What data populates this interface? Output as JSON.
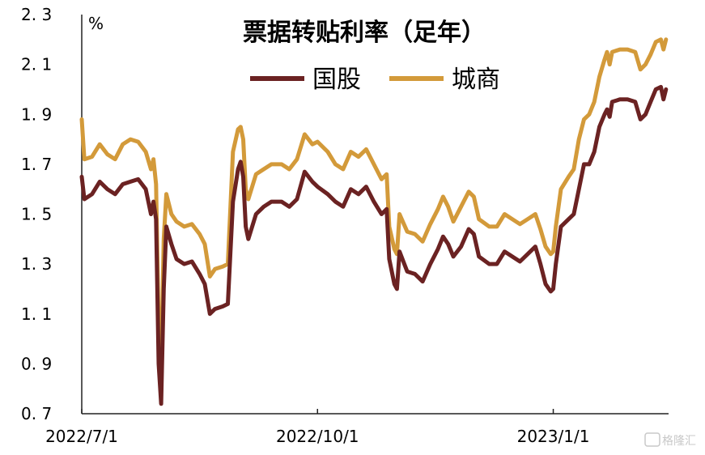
{
  "chart_data": {
    "type": "line",
    "title": "票据转贴利率（足年）",
    "unit": "%",
    "ylim": [
      0.7,
      2.3
    ],
    "yticks": [
      "2. 3",
      "2. 1",
      "1. 9",
      "1. 7",
      "1. 5",
      "1. 3",
      "1. 1",
      "0. 9",
      "0. 7"
    ],
    "ytick_values": [
      2.3,
      2.1,
      1.9,
      1.7,
      1.5,
      1.3,
      1.1,
      0.9,
      0.7
    ],
    "xlim": [
      "2022-07-01",
      "2023-02-15"
    ],
    "xticks": [
      {
        "label": "2022/7/1",
        "date": "2022-07-01"
      },
      {
        "label": "2022/10/1",
        "date": "2022-10-01"
      },
      {
        "label": "2023/1/1",
        "date": "2023-01-01"
      }
    ],
    "grid": false,
    "legend_position": "top-center",
    "series": [
      {
        "name": "国股",
        "color": "#6b2222",
        "points": [
          [
            "2022-07-01",
            1.65
          ],
          [
            "2022-07-02",
            1.56
          ],
          [
            "2022-07-05",
            1.58
          ],
          [
            "2022-07-08",
            1.63
          ],
          [
            "2022-07-11",
            1.6
          ],
          [
            "2022-07-14",
            1.58
          ],
          [
            "2022-07-17",
            1.62
          ],
          [
            "2022-07-20",
            1.63
          ],
          [
            "2022-07-23",
            1.64
          ],
          [
            "2022-07-26",
            1.6
          ],
          [
            "2022-07-28",
            1.5
          ],
          [
            "2022-07-29",
            1.55
          ],
          [
            "2022-07-30",
            1.48
          ],
          [
            "2022-07-31",
            0.9
          ],
          [
            "2022-08-01",
            0.74
          ],
          [
            "2022-08-02",
            1.2
          ],
          [
            "2022-08-03",
            1.45
          ],
          [
            "2022-08-05",
            1.38
          ],
          [
            "2022-08-07",
            1.32
          ],
          [
            "2022-08-10",
            1.3
          ],
          [
            "2022-08-13",
            1.31
          ],
          [
            "2022-08-16",
            1.26
          ],
          [
            "2022-08-18",
            1.22
          ],
          [
            "2022-08-20",
            1.1
          ],
          [
            "2022-08-22",
            1.12
          ],
          [
            "2022-08-25",
            1.13
          ],
          [
            "2022-08-27",
            1.14
          ],
          [
            "2022-08-29",
            1.55
          ],
          [
            "2022-08-31",
            1.68
          ],
          [
            "2022-09-01",
            1.71
          ],
          [
            "2022-09-02",
            1.65
          ],
          [
            "2022-09-03",
            1.45
          ],
          [
            "2022-09-04",
            1.4
          ],
          [
            "2022-09-07",
            1.5
          ],
          [
            "2022-09-10",
            1.53
          ],
          [
            "2022-09-13",
            1.55
          ],
          [
            "2022-09-17",
            1.55
          ],
          [
            "2022-09-20",
            1.53
          ],
          [
            "2022-09-23",
            1.56
          ],
          [
            "2022-09-26",
            1.67
          ],
          [
            "2022-09-29",
            1.63
          ],
          [
            "2022-10-01",
            1.61
          ],
          [
            "2022-10-05",
            1.58
          ],
          [
            "2022-10-08",
            1.55
          ],
          [
            "2022-10-11",
            1.53
          ],
          [
            "2022-10-14",
            1.6
          ],
          [
            "2022-10-17",
            1.58
          ],
          [
            "2022-10-20",
            1.61
          ],
          [
            "2022-10-23",
            1.55
          ],
          [
            "2022-10-26",
            1.5
          ],
          [
            "2022-10-28",
            1.52
          ],
          [
            "2022-10-29",
            1.32
          ],
          [
            "2022-10-31",
            1.22
          ],
          [
            "2022-11-01",
            1.2
          ],
          [
            "2022-11-02",
            1.35
          ],
          [
            "2022-11-05",
            1.27
          ],
          [
            "2022-11-08",
            1.26
          ],
          [
            "2022-11-11",
            1.23
          ],
          [
            "2022-11-14",
            1.3
          ],
          [
            "2022-11-17",
            1.36
          ],
          [
            "2022-11-19",
            1.41
          ],
          [
            "2022-11-21",
            1.38
          ],
          [
            "2022-11-23",
            1.33
          ],
          [
            "2022-11-26",
            1.37
          ],
          [
            "2022-11-29",
            1.44
          ],
          [
            "2022-12-01",
            1.42
          ],
          [
            "2022-12-03",
            1.33
          ],
          [
            "2022-12-07",
            1.3
          ],
          [
            "2022-12-10",
            1.3
          ],
          [
            "2022-12-13",
            1.35
          ],
          [
            "2022-12-16",
            1.33
          ],
          [
            "2022-12-19",
            1.31
          ],
          [
            "2022-12-22",
            1.34
          ],
          [
            "2022-12-25",
            1.37
          ],
          [
            "2022-12-27",
            1.3
          ],
          [
            "2022-12-29",
            1.22
          ],
          [
            "2022-12-31",
            1.19
          ],
          [
            "2023-01-01",
            1.2
          ],
          [
            "2023-01-02",
            1.3
          ],
          [
            "2023-01-04",
            1.45
          ],
          [
            "2023-01-07",
            1.48
          ],
          [
            "2023-01-09",
            1.5
          ],
          [
            "2023-01-11",
            1.6
          ],
          [
            "2023-01-13",
            1.7
          ],
          [
            "2023-01-15",
            1.7
          ],
          [
            "2023-01-17",
            1.75
          ],
          [
            "2023-01-19",
            1.85
          ],
          [
            "2023-01-21",
            1.9
          ],
          [
            "2023-01-22",
            1.92
          ],
          [
            "2023-01-23",
            1.89
          ],
          [
            "2023-01-24",
            1.95
          ],
          [
            "2023-01-27",
            1.96
          ],
          [
            "2023-01-30",
            1.96
          ],
          [
            "2023-02-02",
            1.95
          ],
          [
            "2023-02-04",
            1.88
          ],
          [
            "2023-02-06",
            1.9
          ],
          [
            "2023-02-08",
            1.95
          ],
          [
            "2023-02-10",
            2.0
          ],
          [
            "2023-02-12",
            2.01
          ],
          [
            "2023-02-13",
            1.96
          ],
          [
            "2023-02-14",
            2.0
          ]
        ]
      },
      {
        "name": "城商",
        "color": "#d39a3a",
        "points": [
          [
            "2022-07-01",
            1.88
          ],
          [
            "2022-07-02",
            1.72
          ],
          [
            "2022-07-05",
            1.73
          ],
          [
            "2022-07-08",
            1.78
          ],
          [
            "2022-07-11",
            1.74
          ],
          [
            "2022-07-14",
            1.72
          ],
          [
            "2022-07-17",
            1.78
          ],
          [
            "2022-07-20",
            1.8
          ],
          [
            "2022-07-23",
            1.79
          ],
          [
            "2022-07-26",
            1.75
          ],
          [
            "2022-07-28",
            1.68
          ],
          [
            "2022-07-29",
            1.72
          ],
          [
            "2022-07-30",
            1.62
          ],
          [
            "2022-07-31",
            1.05
          ],
          [
            "2022-08-01",
            0.89
          ],
          [
            "2022-08-02",
            1.4
          ],
          [
            "2022-08-03",
            1.58
          ],
          [
            "2022-08-05",
            1.5
          ],
          [
            "2022-08-07",
            1.47
          ],
          [
            "2022-08-10",
            1.45
          ],
          [
            "2022-08-13",
            1.46
          ],
          [
            "2022-08-16",
            1.42
          ],
          [
            "2022-08-18",
            1.38
          ],
          [
            "2022-08-20",
            1.25
          ],
          [
            "2022-08-22",
            1.28
          ],
          [
            "2022-08-25",
            1.29
          ],
          [
            "2022-08-27",
            1.3
          ],
          [
            "2022-08-29",
            1.75
          ],
          [
            "2022-08-31",
            1.84
          ],
          [
            "2022-09-01",
            1.85
          ],
          [
            "2022-09-02",
            1.8
          ],
          [
            "2022-09-03",
            1.6
          ],
          [
            "2022-09-04",
            1.56
          ],
          [
            "2022-09-07",
            1.66
          ],
          [
            "2022-09-10",
            1.68
          ],
          [
            "2022-09-13",
            1.7
          ],
          [
            "2022-09-17",
            1.7
          ],
          [
            "2022-09-20",
            1.68
          ],
          [
            "2022-09-23",
            1.72
          ],
          [
            "2022-09-26",
            1.82
          ],
          [
            "2022-09-29",
            1.78
          ],
          [
            "2022-10-01",
            1.79
          ],
          [
            "2022-10-05",
            1.75
          ],
          [
            "2022-10-08",
            1.7
          ],
          [
            "2022-10-11",
            1.68
          ],
          [
            "2022-10-14",
            1.75
          ],
          [
            "2022-10-17",
            1.73
          ],
          [
            "2022-10-20",
            1.76
          ],
          [
            "2022-10-23",
            1.7
          ],
          [
            "2022-10-26",
            1.64
          ],
          [
            "2022-10-28",
            1.66
          ],
          [
            "2022-10-29",
            1.45
          ],
          [
            "2022-10-31",
            1.36
          ],
          [
            "2022-11-01",
            1.34
          ],
          [
            "2022-11-02",
            1.5
          ],
          [
            "2022-11-05",
            1.43
          ],
          [
            "2022-11-08",
            1.42
          ],
          [
            "2022-11-11",
            1.39
          ],
          [
            "2022-11-14",
            1.46
          ],
          [
            "2022-11-17",
            1.52
          ],
          [
            "2022-11-19",
            1.57
          ],
          [
            "2022-11-21",
            1.53
          ],
          [
            "2022-11-23",
            1.47
          ],
          [
            "2022-11-26",
            1.53
          ],
          [
            "2022-11-29",
            1.59
          ],
          [
            "2022-12-01",
            1.57
          ],
          [
            "2022-12-03",
            1.48
          ],
          [
            "2022-12-07",
            1.45
          ],
          [
            "2022-12-10",
            1.45
          ],
          [
            "2022-12-13",
            1.5
          ],
          [
            "2022-12-16",
            1.48
          ],
          [
            "2022-12-19",
            1.46
          ],
          [
            "2022-12-22",
            1.48
          ],
          [
            "2022-12-25",
            1.5
          ],
          [
            "2022-12-27",
            1.44
          ],
          [
            "2022-12-29",
            1.37
          ],
          [
            "2022-12-31",
            1.34
          ],
          [
            "2023-01-01",
            1.35
          ],
          [
            "2023-01-02",
            1.45
          ],
          [
            "2023-01-04",
            1.6
          ],
          [
            "2023-01-07",
            1.65
          ],
          [
            "2023-01-09",
            1.68
          ],
          [
            "2023-01-11",
            1.8
          ],
          [
            "2023-01-13",
            1.88
          ],
          [
            "2023-01-15",
            1.9
          ],
          [
            "2023-01-17",
            1.95
          ],
          [
            "2023-01-19",
            2.05
          ],
          [
            "2023-01-21",
            2.12
          ],
          [
            "2023-01-22",
            2.15
          ],
          [
            "2023-01-23",
            2.1
          ],
          [
            "2023-01-24",
            2.15
          ],
          [
            "2023-01-27",
            2.16
          ],
          [
            "2023-01-30",
            2.16
          ],
          [
            "2023-02-02",
            2.15
          ],
          [
            "2023-02-04",
            2.08
          ],
          [
            "2023-02-06",
            2.1
          ],
          [
            "2023-02-08",
            2.14
          ],
          [
            "2023-02-10",
            2.19
          ],
          [
            "2023-02-12",
            2.2
          ],
          [
            "2023-02-13",
            2.16
          ],
          [
            "2023-02-14",
            2.2
          ]
        ]
      }
    ]
  },
  "watermark": {
    "text": "格隆汇",
    "icon": "g-logo-icon"
  }
}
